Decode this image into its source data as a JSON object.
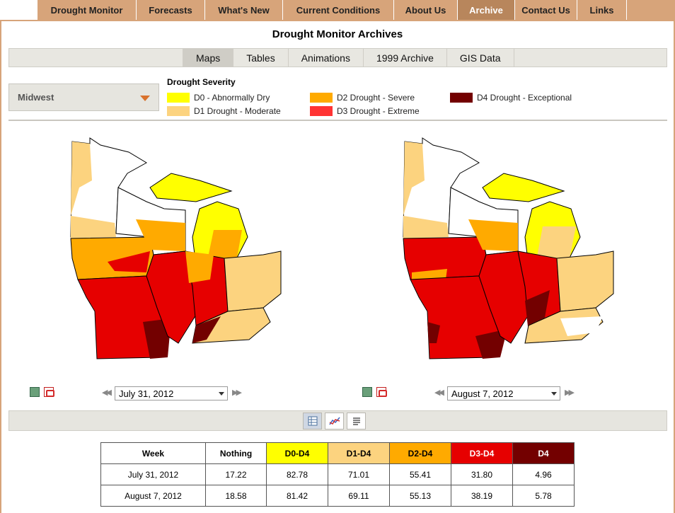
{
  "nav": {
    "items": [
      {
        "label": "Drought Monitor",
        "width": 140
      },
      {
        "label": "Forecasts",
        "width": 97
      },
      {
        "label": "What's New",
        "width": 110
      },
      {
        "label": "Current Conditions",
        "width": 157
      },
      {
        "label": "About Us",
        "width": 90
      },
      {
        "label": "Archive",
        "width": 81
      },
      {
        "label": "Contact Us",
        "width": 88
      },
      {
        "label": "Links",
        "width": 70
      }
    ],
    "active": "Archive"
  },
  "page": {
    "title": "Drought Monitor Archives"
  },
  "subtabs": [
    "Maps",
    "Tables",
    "Animations",
    "1999 Archive",
    "GIS Data"
  ],
  "region": {
    "selected": "Midwest"
  },
  "legend": {
    "title": "Drought Severity",
    "items": [
      {
        "label": "D0 - Abnormally Dry",
        "color": "#ffff00"
      },
      {
        "label": "D1 Drought - Moderate",
        "color": "#fcd37f"
      },
      {
        "label": "D2 Drought - Severe",
        "color": "#ffaa00"
      },
      {
        "label": "D3 Drought - Extreme",
        "color": "#e60000"
      },
      {
        "label": "D4 Drought - Exceptional",
        "color": "#730000"
      }
    ]
  },
  "maps": [
    {
      "date": "July 31, 2012"
    },
    {
      "date": "August 7, 2012"
    }
  ],
  "table": {
    "headers": [
      "Week",
      "Nothing",
      "D0-D4",
      "D1-D4",
      "D2-D4",
      "D3-D4",
      "D4"
    ],
    "header_colors": [
      "#ffffff",
      "#ffffff",
      "#ffff00",
      "#fcd37f",
      "#ffaa00",
      "#e60000",
      "#730000"
    ],
    "rows": [
      [
        "July 31, 2012",
        "17.22",
        "82.78",
        "71.01",
        "55.41",
        "31.80",
        "4.96"
      ],
      [
        "August 7, 2012",
        "18.58",
        "81.42",
        "69.11",
        "55.13",
        "38.19",
        "5.78"
      ]
    ]
  }
}
